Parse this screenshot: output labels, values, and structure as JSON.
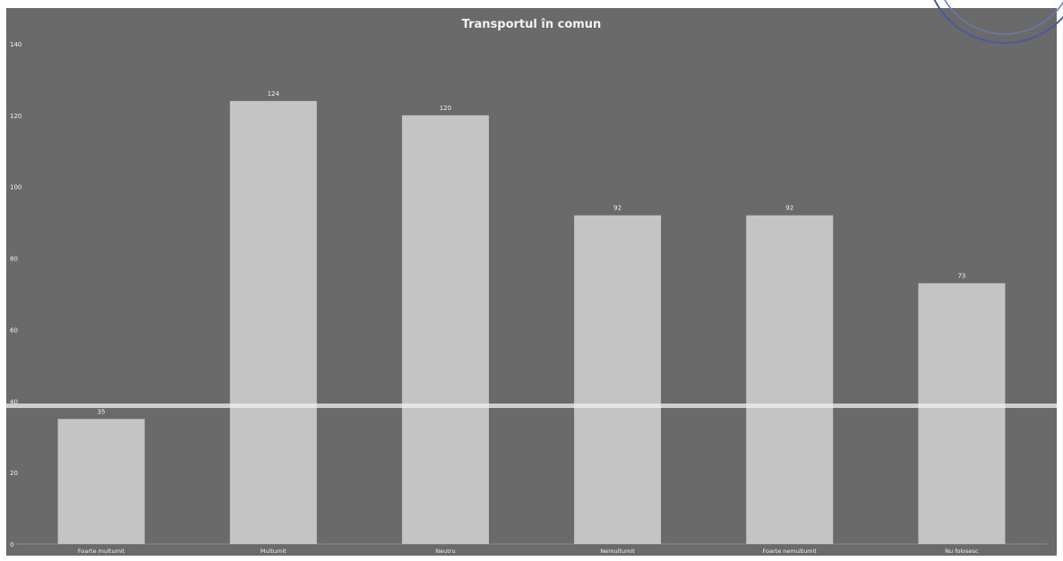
{
  "chart_data": {
    "type": "bar",
    "title": "Transportul în comun",
    "categories": [
      "Foarte multumit",
      "Multumit",
      "Neutru",
      "Nemultumit",
      "Foarte nemultumit",
      "Nu folosesc"
    ],
    "values": [
      35,
      124,
      120,
      92,
      92,
      73
    ],
    "ylim": [
      0,
      140
    ],
    "yticks": [
      0,
      20,
      40,
      60,
      80,
      100,
      120,
      140
    ],
    "grid": false,
    "legend": "none",
    "xlabel": "",
    "ylabel": "",
    "colors": {
      "background": "#6a6a6a",
      "bar": "#c4c4c4",
      "text": "#f2f2f2",
      "scan_line": "#f0f0f0"
    }
  }
}
